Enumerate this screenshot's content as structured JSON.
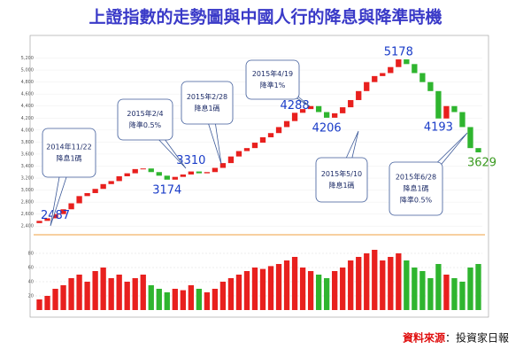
{
  "header": {
    "title": "上證指數的走勢圖與中國人行的降息與降準時機"
  },
  "chart_data": {
    "type": "candlestick",
    "ylim": [
      2300,
      5400
    ],
    "yticks": [
      {
        "value": 2400,
        "label": "2,400"
      },
      {
        "value": 2600,
        "label": "2,600"
      },
      {
        "value": 2800,
        "label": "2,800"
      },
      {
        "value": 3000,
        "label": "3,000"
      },
      {
        "value": 3200,
        "label": "3,200"
      },
      {
        "value": 3400,
        "label": "3,400"
      },
      {
        "value": 3600,
        "label": "3,600"
      },
      {
        "value": 3800,
        "label": "3,800"
      },
      {
        "value": 4000,
        "label": "4,000"
      },
      {
        "value": 4200,
        "label": "4,200"
      },
      {
        "value": 4400,
        "label": "4,400"
      },
      {
        "value": 4600,
        "label": "4,600"
      },
      {
        "value": 4800,
        "label": "4,800"
      },
      {
        "value": 5000,
        "label": "5,000"
      },
      {
        "value": 5200,
        "label": "5,200"
      }
    ],
    "up_color": "#e8201e",
    "down_color": "#2fb52f",
    "open": [
      2450,
      2487,
      2530,
      2600,
      2680,
      2780,
      2900,
      2950,
      3020,
      3100,
      3150,
      3230,
      3280,
      3350,
      3360,
      3300,
      3240,
      3174,
      3220,
      3260,
      3310,
      3280,
      3300,
      3370,
      3450,
      3560,
      3650,
      3700,
      3790,
      3880,
      3950,
      4050,
      4150,
      4288,
      4350,
      4400,
      4300,
      4206,
      4280,
      4380,
      4500,
      4650,
      4800,
      4900,
      4950,
      5050,
      5178,
      5100,
      4950,
      4800,
      4650,
      4193,
      4400,
      4300,
      4050,
      3700
    ],
    "close": [
      2487,
      2530,
      2600,
      2680,
      2780,
      2900,
      2950,
      3020,
      3100,
      3150,
      3230,
      3280,
      3350,
      3360,
      3300,
      3240,
      3174,
      3220,
      3260,
      3310,
      3280,
      3300,
      3370,
      3450,
      3560,
      3650,
      3700,
      3790,
      3880,
      3950,
      4050,
      4150,
      4288,
      4350,
      4400,
      4300,
      4206,
      4280,
      4380,
      4500,
      4650,
      4800,
      4900,
      4950,
      5050,
      5178,
      5100,
      4950,
      4800,
      4650,
      4193,
      4400,
      4300,
      4050,
      3700,
      3629
    ],
    "price_labels": [
      2487,
      3174,
      3310,
      4288,
      4206,
      5178,
      4193,
      3629
    ],
    "volume": {
      "ylim": [
        0,
        90
      ],
      "yticks": [
        20,
        40,
        60,
        80
      ],
      "values": [
        15,
        20,
        30,
        35,
        45,
        50,
        40,
        55,
        60,
        45,
        50,
        40,
        45,
        50,
        35,
        30,
        25,
        30,
        28,
        35,
        30,
        25,
        30,
        40,
        45,
        50,
        55,
        60,
        58,
        62,
        65,
        70,
        75,
        60,
        55,
        50,
        45,
        55,
        60,
        70,
        75,
        80,
        85,
        70,
        75,
        80,
        70,
        60,
        55,
        45,
        65,
        50,
        45,
        40,
        60,
        65
      ]
    },
    "callouts": [
      {
        "lines": [
          "2014年11/22",
          "降息1碼"
        ]
      },
      {
        "lines": [
          "2015年2/4",
          "降準0.5%"
        ]
      },
      {
        "lines": [
          "2015年2/28",
          "降息1碼"
        ]
      },
      {
        "lines": [
          "2015年4/19",
          "降準1%"
        ]
      },
      {
        "lines": [
          "2015年5/10",
          "降息1碼"
        ]
      },
      {
        "lines": [
          "2015年6/28",
          "降息1碼",
          "降準0.5%"
        ]
      }
    ]
  },
  "footer": {
    "source_label": "資料來源",
    "source_name": "：投資家日報"
  }
}
